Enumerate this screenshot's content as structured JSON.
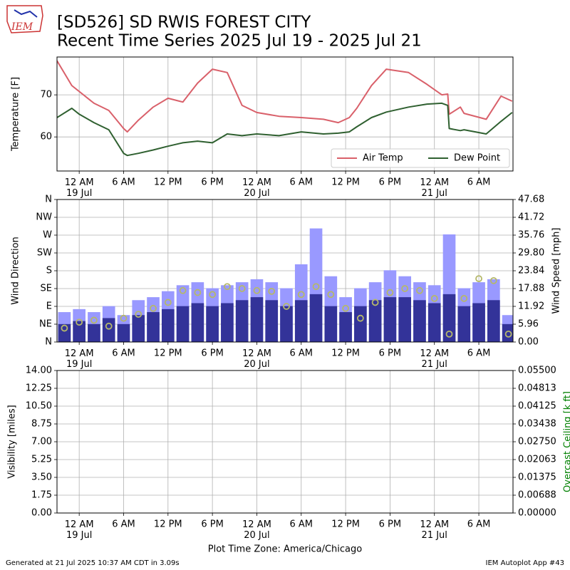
{
  "logo": "IEM",
  "title": "[SD526] SD RWIS FOREST CITY",
  "subtitle": "Recent Time Series 2025 Jul 19 - 2025 Jul 21",
  "footer": {
    "left": "Generated at 21 Jul 2025 10:37 AM CDT in 3.09s",
    "right": "IEM Autoplot App #43"
  },
  "chart_data": [
    {
      "type": "line",
      "ylabel": "Temperature [F]",
      "xlim": [
        "2025-07-18 21:00",
        "2025-07-21 10:37"
      ],
      "xticks": [
        {
          "value": "2025-07-19 00:00",
          "label": "12 AM\n19 Jul"
        },
        {
          "value": "2025-07-19 06:00",
          "label": "6 AM"
        },
        {
          "value": "2025-07-19 12:00",
          "label": "12 PM"
        },
        {
          "value": "2025-07-19 18:00",
          "label": "6 PM"
        },
        {
          "value": "2025-07-20 00:00",
          "label": "12 AM\n20 Jul"
        },
        {
          "value": "2025-07-20 06:00",
          "label": "6 AM"
        },
        {
          "value": "2025-07-20 12:00",
          "label": "12 PM"
        },
        {
          "value": "2025-07-20 18:00",
          "label": "6 PM"
        },
        {
          "value": "2025-07-21 00:00",
          "label": "12 AM\n21 Jul"
        },
        {
          "value": "2025-07-21 06:00",
          "label": "6 AM"
        }
      ],
      "ylim": [
        51.9,
        79.0
      ],
      "yticks": [
        60,
        70
      ],
      "grid": true,
      "legend": "lower right",
      "x": [
        "2025-07-18 21:00",
        "2025-07-18 23:00",
        "2025-07-19 00:00",
        "2025-07-19 02:00",
        "2025-07-19 04:00",
        "2025-07-19 06:00",
        "2025-07-19 06:30",
        "2025-07-19 08:00",
        "2025-07-19 10:00",
        "2025-07-19 12:00",
        "2025-07-19 14:00",
        "2025-07-19 16:00",
        "2025-07-19 18:00",
        "2025-07-19 20:00",
        "2025-07-19 22:00",
        "2025-07-20 00:00",
        "2025-07-20 03:00",
        "2025-07-20 06:00",
        "2025-07-20 09:00",
        "2025-07-20 11:00",
        "2025-07-20 12:30",
        "2025-07-20 13:30",
        "2025-07-20 15:30",
        "2025-07-20 17:30",
        "2025-07-20 20:30",
        "2025-07-20 23:00",
        "2025-07-21 01:00",
        "2025-07-21 01:48",
        "2025-07-21 02:00",
        "2025-07-21 03:30",
        "2025-07-21 04:00",
        "2025-07-21 07:00",
        "2025-07-21 09:00",
        "2025-07-21 10:30"
      ],
      "series": [
        {
          "name": "Air Temp",
          "color": "#d9606a",
          "values": [
            78.1,
            72.2,
            70.8,
            68,
            66.3,
            62,
            61.2,
            64,
            67.1,
            69.2,
            68.3,
            72.8,
            76.1,
            75.3,
            67.5,
            65.8,
            64.9,
            64.6,
            64.2,
            63.4,
            64.6,
            66.8,
            72.2,
            76.1,
            75.3,
            72.5,
            70,
            70.2,
            65.4,
            67.1,
            65.6,
            64.2,
            69.7,
            68.5
          ]
        },
        {
          "name": "Dew Point",
          "color": "#2f6030",
          "values": [
            64.6,
            66.8,
            65.4,
            63.4,
            61.7,
            56.1,
            55.6,
            56.1,
            56.9,
            57.8,
            58.6,
            59,
            58.6,
            60.7,
            60.3,
            60.7,
            60.3,
            61.2,
            60.7,
            60.9,
            61.2,
            62.4,
            64.6,
            65.9,
            67.1,
            67.8,
            68,
            67.5,
            62,
            61.5,
            61.7,
            60.7,
            63.7,
            65.8
          ]
        }
      ]
    },
    {
      "type": "bar",
      "ylabel": "Wind Direction",
      "y2label": "Wind Speed [mph]",
      "xlim": [
        "2025-07-18 21:00",
        "2025-07-21 10:37"
      ],
      "xticks": [
        {
          "value": "2025-07-19 00:00",
          "label": "12 AM\n19 Jul"
        },
        {
          "value": "2025-07-19 06:00",
          "label": "6 AM"
        },
        {
          "value": "2025-07-19 12:00",
          "label": "12 PM"
        },
        {
          "value": "2025-07-19 18:00",
          "label": "6 PM"
        },
        {
          "value": "2025-07-20 00:00",
          "label": "12 AM\n20 Jul"
        },
        {
          "value": "2025-07-20 06:00",
          "label": "6 AM"
        },
        {
          "value": "2025-07-20 12:00",
          "label": "12 PM"
        },
        {
          "value": "2025-07-20 18:00",
          "label": "6 PM"
        },
        {
          "value": "2025-07-21 00:00",
          "label": "12 AM\n21 Jul"
        },
        {
          "value": "2025-07-21 06:00",
          "label": "6 AM"
        }
      ],
      "ylim": [
        0,
        360
      ],
      "yticks": [
        {
          "value": 0,
          "label": "N"
        },
        {
          "value": 45,
          "label": "NE"
        },
        {
          "value": 90,
          "label": "E"
        },
        {
          "value": 135,
          "label": "SE"
        },
        {
          "value": 180,
          "label": "S"
        },
        {
          "value": 225,
          "label": "SW"
        },
        {
          "value": 270,
          "label": "W"
        },
        {
          "value": 315,
          "label": "NW"
        },
        {
          "value": 360,
          "label": "N"
        }
      ],
      "y2lim": [
        0,
        47.68
      ],
      "y2ticks": [
        {
          "value": 0,
          "label": "0.00"
        },
        5.96,
        11.92,
        17.88,
        23.84,
        {
          "value": 29.8,
          "label": "29.80"
        },
        35.76,
        41.72,
        47.68
      ],
      "grid": true,
      "x": [
        "2025-07-18 22:00",
        "2025-07-19 00:00",
        "2025-07-19 02:00",
        "2025-07-19 04:00",
        "2025-07-19 06:00",
        "2025-07-19 08:00",
        "2025-07-19 10:00",
        "2025-07-19 12:00",
        "2025-07-19 14:00",
        "2025-07-19 16:00",
        "2025-07-19 18:00",
        "2025-07-19 20:00",
        "2025-07-19 22:00",
        "2025-07-20 00:00",
        "2025-07-20 02:00",
        "2025-07-20 04:00",
        "2025-07-20 06:00",
        "2025-07-20 08:00",
        "2025-07-20 10:00",
        "2025-07-20 12:00",
        "2025-07-20 14:00",
        "2025-07-20 16:00",
        "2025-07-20 18:00",
        "2025-07-20 20:00",
        "2025-07-20 22:00",
        "2025-07-21 00:00",
        "2025-07-21 02:00",
        "2025-07-21 04:00",
        "2025-07-21 06:00",
        "2025-07-21 08:00",
        "2025-07-21 10:00"
      ],
      "series": [
        {
          "color": "#9999ff",
          "axis": "y2",
          "values": [
            10,
            11,
            10,
            12,
            9,
            14,
            15,
            17,
            19,
            20,
            18,
            19,
            20,
            21,
            20,
            18,
            26,
            38,
            22,
            15,
            18,
            20,
            24,
            22,
            20,
            19,
            36,
            18,
            20,
            21,
            9
          ]
        },
        {
          "color": "#333399",
          "axis": "y2",
          "values": [
            6,
            7,
            6,
            8,
            6,
            9,
            10,
            11,
            12,
            13,
            12,
            13,
            14,
            15,
            14,
            12,
            14,
            16,
            12,
            10,
            12,
            14,
            15,
            15,
            14,
            13,
            16,
            12,
            13,
            14,
            6
          ]
        },
        {
          "color": "#b5b86a",
          "style": "scatter",
          "values": [
            35,
            50,
            55,
            40,
            60,
            70,
            85,
            100,
            130,
            125,
            120,
            140,
            135,
            130,
            128,
            90,
            120,
            140,
            120,
            85,
            60,
            100,
            125,
            135,
            130,
            110,
            20,
            110,
            160,
            155,
            20
          ]
        }
      ]
    },
    {
      "type": "line",
      "ylabel": "Visibility [miles]",
      "y2label": "Overcast Ceiling [k ft]",
      "y2label_color": "green",
      "xlabel": "Plot Time Zone: America/Chicago",
      "xlim": [
        "2025-07-18 21:00",
        "2025-07-21 10:37"
      ],
      "xticks": [
        {
          "value": "2025-07-19 00:00",
          "label": "12 AM\n19 Jul"
        },
        {
          "value": "2025-07-19 06:00",
          "label": "6 AM"
        },
        {
          "value": "2025-07-19 12:00",
          "label": "12 PM"
        },
        {
          "value": "2025-07-19 18:00",
          "label": "6 PM"
        },
        {
          "value": "2025-07-20 00:00",
          "label": "12 AM\n20 Jul"
        },
        {
          "value": "2025-07-20 06:00",
          "label": "6 AM"
        },
        {
          "value": "2025-07-20 12:00",
          "label": "12 PM"
        },
        {
          "value": "2025-07-20 18:00",
          "label": "6 PM"
        },
        {
          "value": "2025-07-21 00:00",
          "label": "12 AM\n21 Jul"
        },
        {
          "value": "2025-07-21 06:00",
          "label": "6 AM"
        }
      ],
      "ylim": [
        0,
        14
      ],
      "yticks": [
        {
          "value": 0,
          "label": "0.00"
        },
        1.75,
        {
          "value": 3.5,
          "label": "3.50"
        },
        5.25,
        {
          "value": 7,
          "label": "7.00"
        },
        8.75,
        {
          "value": 10.5,
          "label": "10.50"
        },
        12.25,
        {
          "value": 14,
          "label": "14.00"
        }
      ],
      "y2lim": [
        0,
        0.055
      ],
      "y2ticks": [
        {
          "value": 0,
          "label": "0.00000"
        },
        {
          "value": 0.006875,
          "label": "0.00688"
        },
        {
          "value": 0.01375,
          "label": "0.01375"
        },
        {
          "value": 0.020625,
          "label": "0.02063"
        },
        {
          "value": 0.0275,
          "label": "0.02750"
        },
        {
          "value": 0.034375,
          "label": "0.03438"
        },
        {
          "value": 0.04125,
          "label": "0.04125"
        },
        {
          "value": 0.048125,
          "label": "0.04813"
        },
        {
          "value": 0.055,
          "label": "0.05500"
        }
      ],
      "grid": true
    }
  ]
}
